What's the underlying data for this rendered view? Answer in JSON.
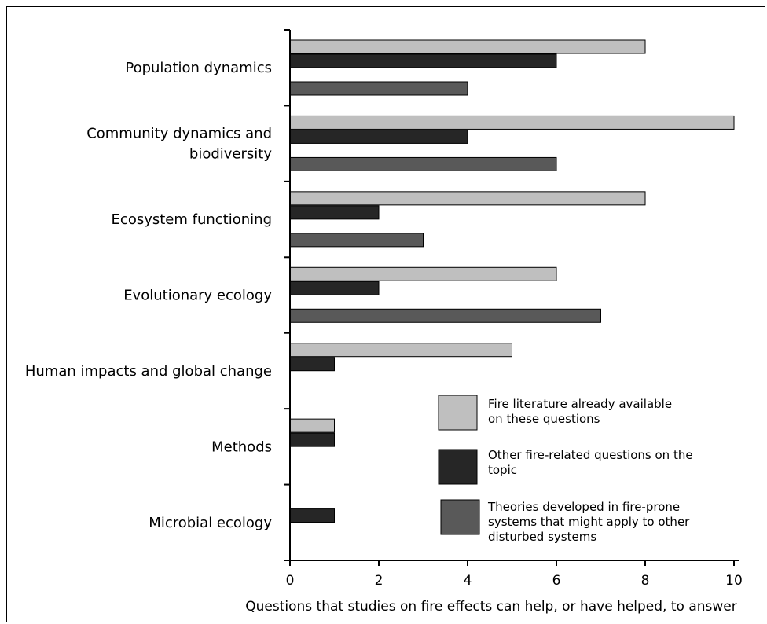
{
  "chart_data": {
    "type": "bar",
    "orientation": "horizontal",
    "categories": [
      [
        "Population dynamics"
      ],
      [
        "Community dynamics and",
        "biodiversity"
      ],
      [
        "Ecosystem functioning"
      ],
      [
        "Evolutionary ecology"
      ],
      [
        "Human impacts and global change"
      ],
      [
        "Methods"
      ],
      [
        "Microbial ecology"
      ]
    ],
    "series": [
      {
        "name": [
          "Fire literature already available",
          "on these questions"
        ],
        "values": [
          8,
          10,
          8,
          6,
          5,
          1,
          0
        ],
        "color": "#bfbfbf"
      },
      {
        "name": [
          "Other fire-related questions on the",
          "topic"
        ],
        "values": [
          6,
          4,
          2,
          2,
          1,
          1,
          1
        ],
        "color": "#262626"
      },
      {
        "name": [
          "Theories developed in fire-prone",
          "systems that might apply to other",
          "disturbed systems"
        ],
        "values": [
          4,
          6,
          3,
          7,
          0,
          0,
          0
        ],
        "color": "#595959"
      }
    ],
    "xlim": [
      0,
      10
    ],
    "xticks": [
      "0",
      "2",
      "4",
      "6",
      "8",
      "10"
    ],
    "xlabel": "Questions that studies on fire effects can help, or have helped, to answer",
    "ylabel": "",
    "title": "",
    "grid": false,
    "legend_position": "lower-right"
  }
}
